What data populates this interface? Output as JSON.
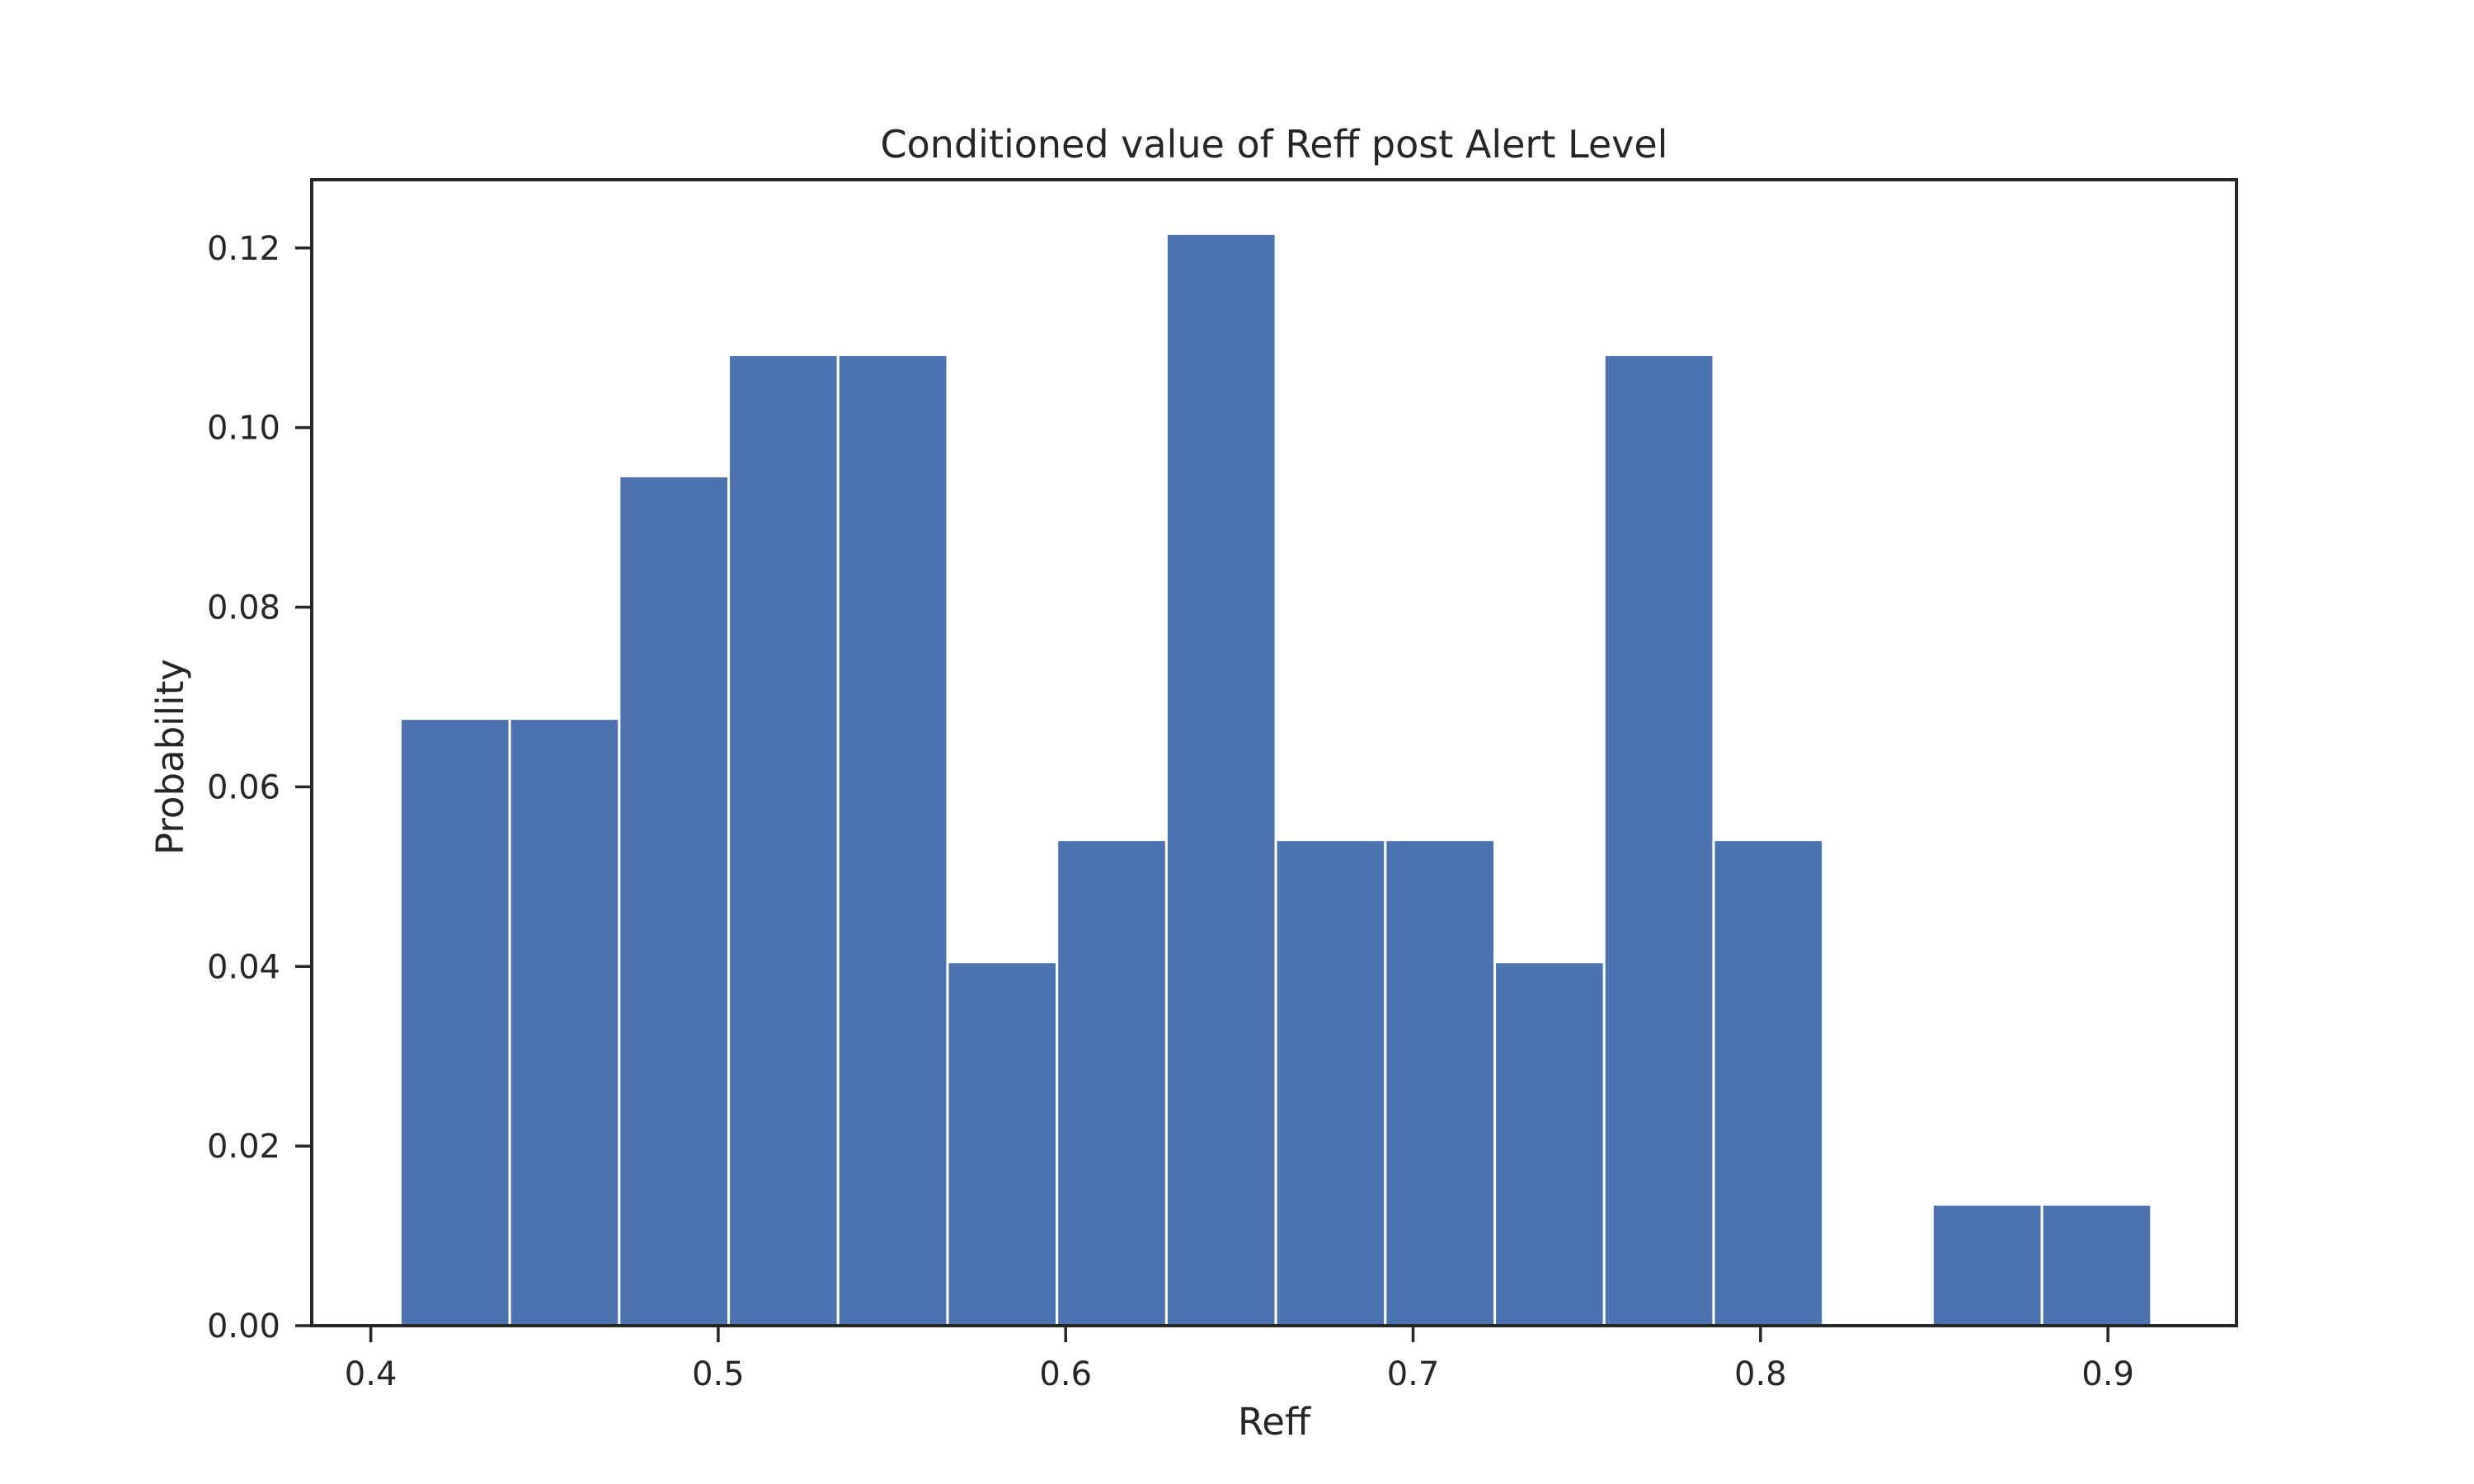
{
  "colors": {
    "bar": "#4c72b0",
    "bar_edge": "#ffffff",
    "axis": "#262626",
    "text": "#262626",
    "background": "#ffffff"
  },
  "chart_data": {
    "type": "bar",
    "title": "Conditioned value of Reff post Alert Level",
    "xlabel": "Reff",
    "ylabel": "Probability",
    "xlim": [
      0.383,
      0.937
    ],
    "ylim": [
      0.0,
      0.1276
    ],
    "grid": false,
    "legend": "none",
    "x_ticks": [
      0.4,
      0.5,
      0.6,
      0.7,
      0.8,
      0.9
    ],
    "x_tick_labels": [
      "0.4",
      "0.5",
      "0.6",
      "0.7",
      "0.8",
      "0.9"
    ],
    "y_ticks": [
      0.0,
      0.02,
      0.04,
      0.06,
      0.08,
      0.1,
      0.12
    ],
    "y_tick_labels": [
      "0.00",
      "0.02",
      "0.04",
      "0.06",
      "0.08",
      "0.10",
      "0.12"
    ],
    "bins": [
      {
        "x0": 0.4085,
        "x1": 0.44,
        "value": 0.0676
      },
      {
        "x0": 0.44,
        "x1": 0.4715,
        "value": 0.0676
      },
      {
        "x0": 0.4715,
        "x1": 0.503,
        "value": 0.0946
      },
      {
        "x0": 0.503,
        "x1": 0.5345,
        "value": 0.1081
      },
      {
        "x0": 0.5345,
        "x1": 0.566,
        "value": 0.1081
      },
      {
        "x0": 0.566,
        "x1": 0.5975,
        "value": 0.0405
      },
      {
        "x0": 0.5975,
        "x1": 0.629,
        "value": 0.0541
      },
      {
        "x0": 0.629,
        "x1": 0.6605,
        "value": 0.1216
      },
      {
        "x0": 0.6605,
        "x1": 0.692,
        "value": 0.0541
      },
      {
        "x0": 0.692,
        "x1": 0.7235,
        "value": 0.0541
      },
      {
        "x0": 0.7235,
        "x1": 0.755,
        "value": 0.0405
      },
      {
        "x0": 0.755,
        "x1": 0.7865,
        "value": 0.1081
      },
      {
        "x0": 0.7865,
        "x1": 0.818,
        "value": 0.0541
      },
      {
        "x0": 0.818,
        "x1": 0.8495,
        "value": 0.0
      },
      {
        "x0": 0.8495,
        "x1": 0.881,
        "value": 0.0135
      },
      {
        "x0": 0.881,
        "x1": 0.9125,
        "value": 0.0135
      }
    ]
  }
}
